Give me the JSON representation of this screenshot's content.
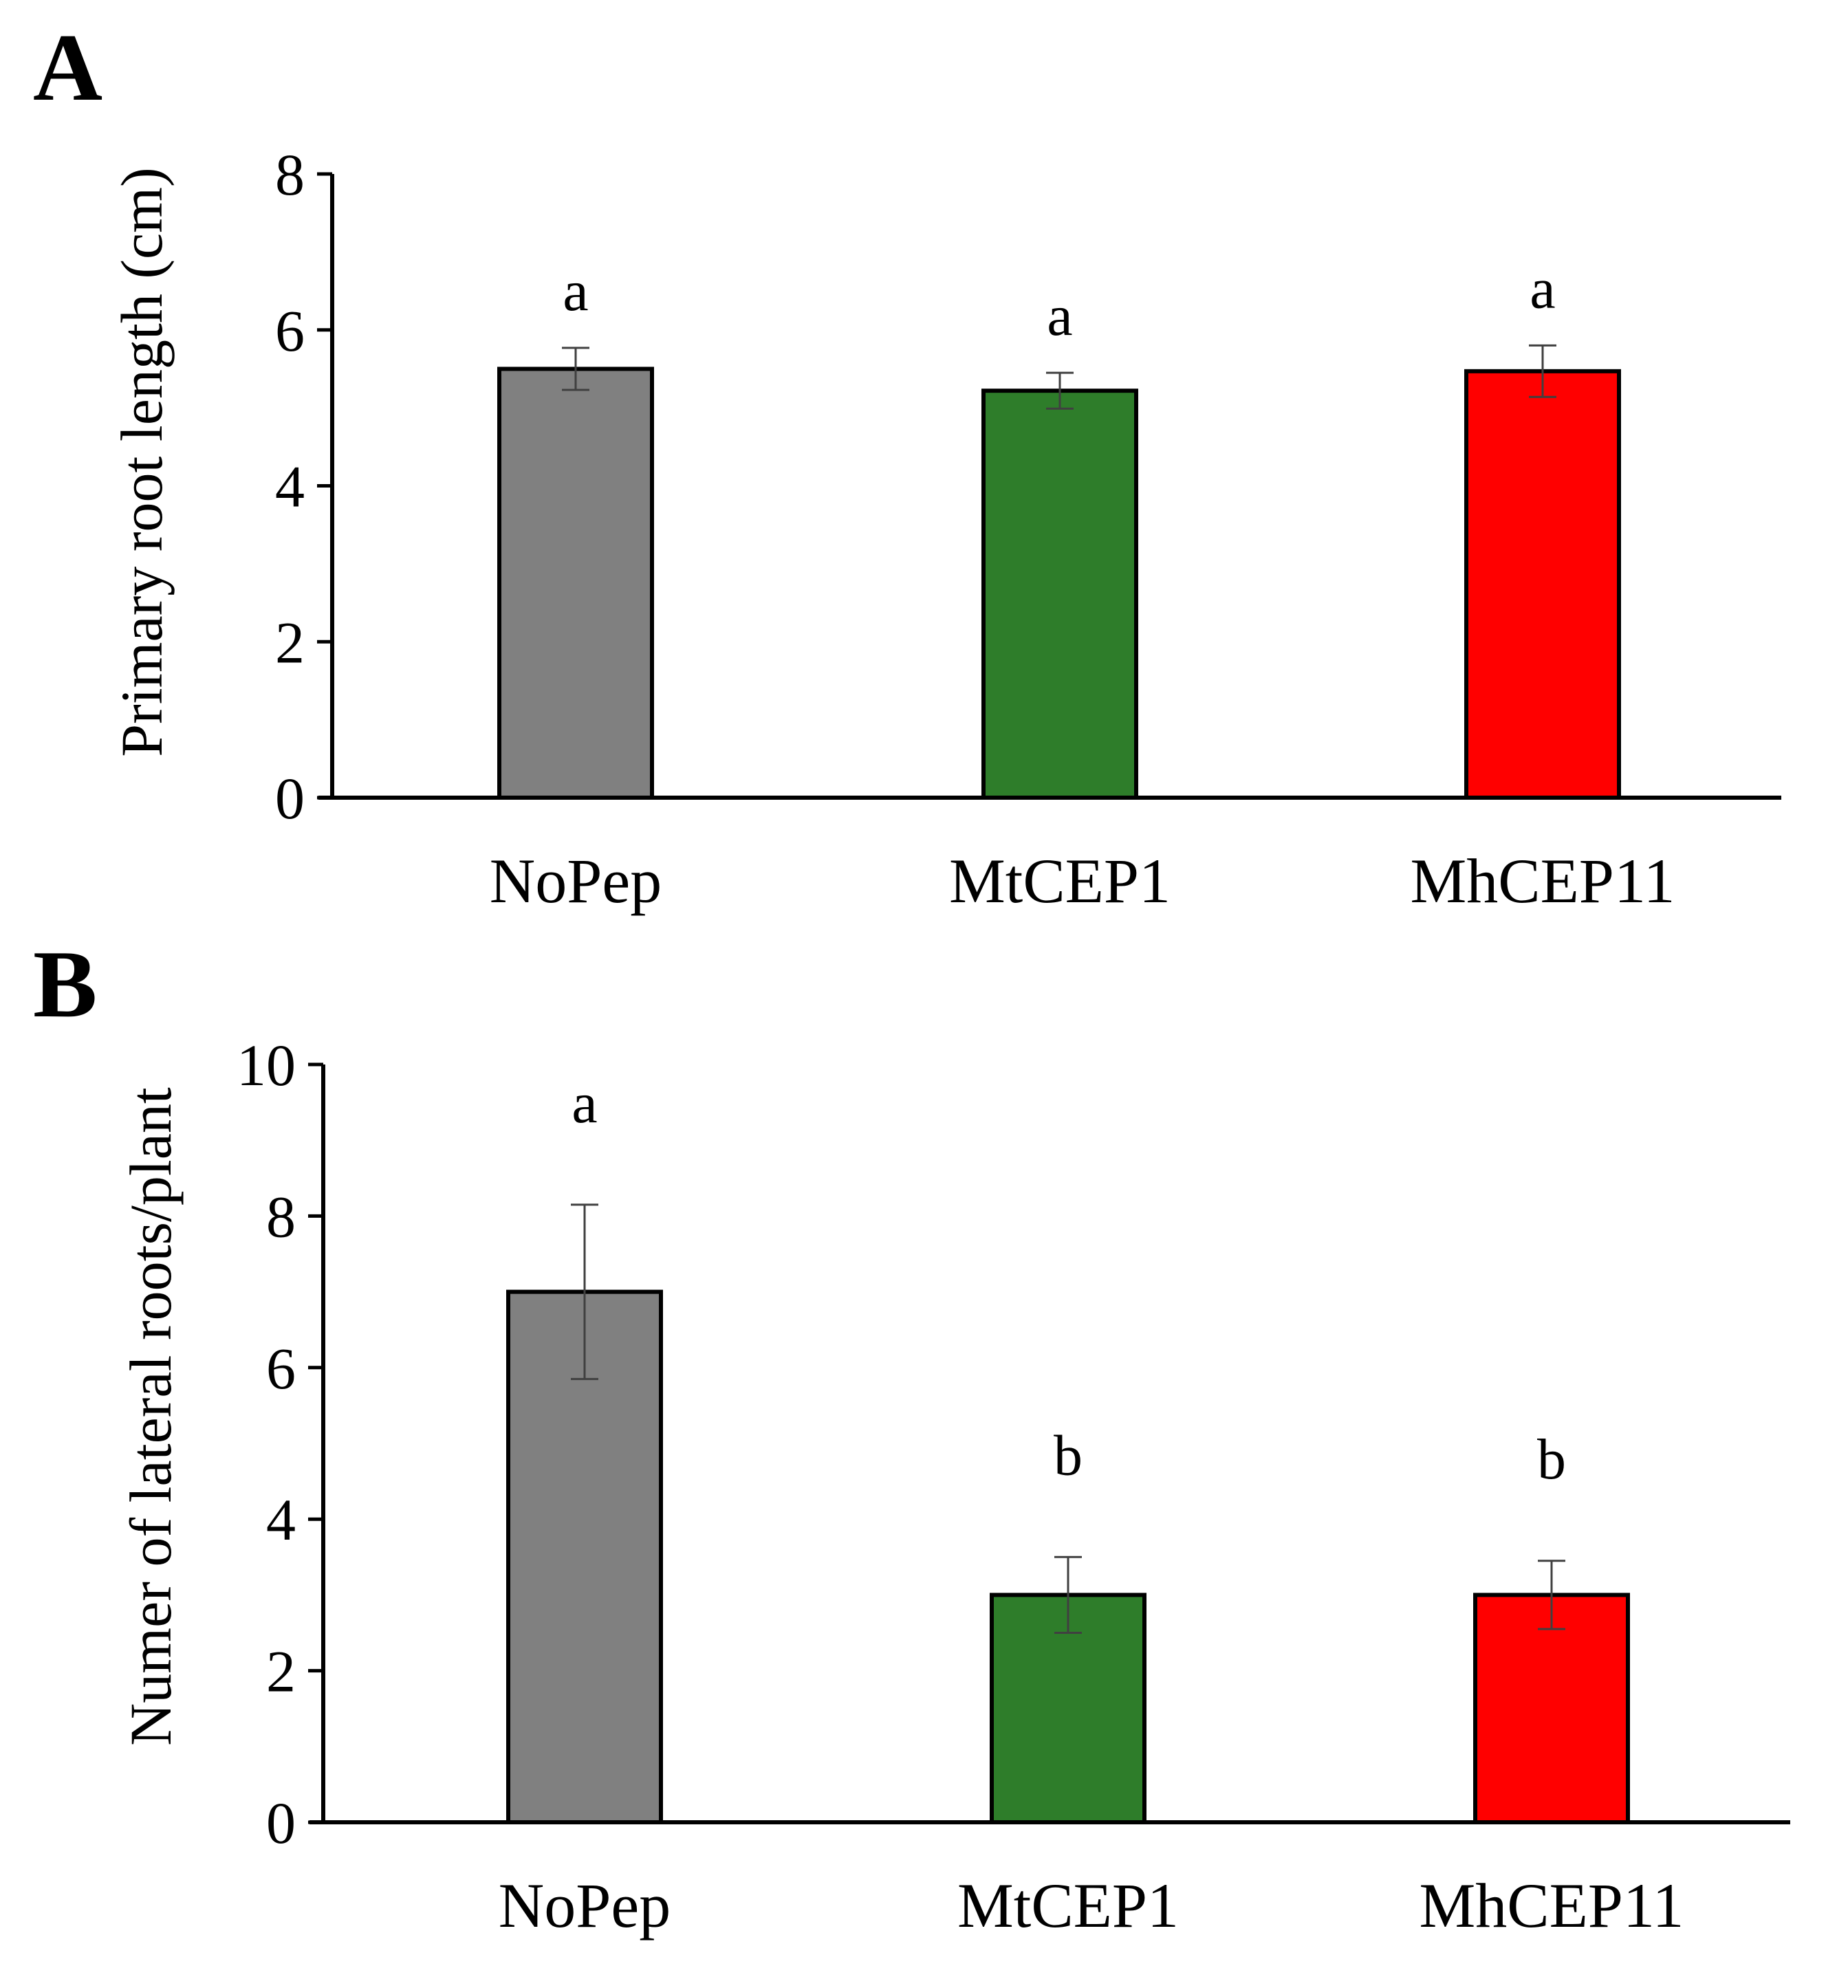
{
  "chart_data": [
    {
      "panel": "A",
      "type": "bar",
      "title": "",
      "xlabel": "",
      "ylabel": "Primary root length (cm)",
      "ylim": [
        0,
        8
      ],
      "yticks": [
        0,
        2,
        4,
        6,
        8
      ],
      "categories": [
        "NoPep",
        "MtCEP1",
        "MhCEP11"
      ],
      "values": [
        5.5,
        5.22,
        5.47
      ],
      "errors": [
        0.27,
        0.23,
        0.33
      ],
      "significance": [
        "a",
        "a",
        "a"
      ],
      "colors": [
        "#808080",
        "#2e7d2a",
        "#ff0000"
      ],
      "grid": false
    },
    {
      "panel": "B",
      "type": "bar",
      "title": "",
      "xlabel": "",
      "ylabel": "Numer of lateral roots/plant",
      "ylim": [
        0,
        10
      ],
      "yticks": [
        0,
        2,
        4,
        6,
        8,
        10
      ],
      "categories": [
        "NoPep",
        "MtCEP1",
        "MhCEP11"
      ],
      "values": [
        7.0,
        3.0,
        3.0
      ],
      "errors": [
        1.15,
        0.5,
        0.45
      ],
      "significance": [
        "a",
        "b",
        "b"
      ],
      "colors": [
        "#808080",
        "#2e7d2a",
        "#ff0000"
      ],
      "grid": false
    }
  ]
}
